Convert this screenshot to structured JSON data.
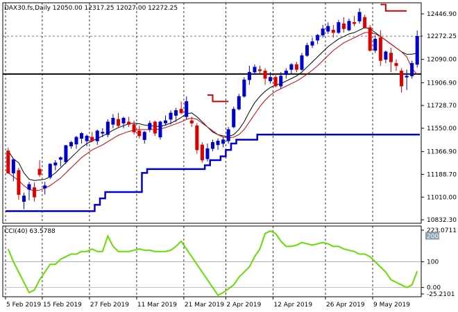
{
  "chart_data": [
    {
      "type": "candlestick",
      "title": "DAX30.fs,Daily  12050.00 12317.25 12027.00 12272.25",
      "symbol": "DAX30.fs,Daily",
      "ohlc_header": "12050.00 12317.25 12027.00 12272.25",
      "last_price": "12272.25",
      "ylim": [
        10832.3,
        12500.0
      ],
      "y_ticks": [
        "12446.90",
        "12272.25",
        "12090.00",
        "11906.90",
        "11728.70",
        "11550.00",
        "11366.90",
        "11188.70",
        "11010.00",
        "10832.30"
      ],
      "x_ticks": [
        "5 Feb 2019",
        "15 Feb 2019",
        "27 Feb 2019",
        "11 Mar 2019",
        "21 Mar 2019",
        "2 Apr 2019",
        "12 Apr 2019",
        "26 Apr 2019",
        "9 May 2019"
      ],
      "horizontal_line": 11975,
      "candles": [
        [
          11373,
          11397,
          11197,
          11198
        ],
        [
          11198,
          11312,
          11135,
          11305
        ],
        [
          11220,
          11240,
          10990,
          11030
        ],
        [
          10975,
          11045,
          10915,
          11020
        ],
        [
          11070,
          11130,
          10985,
          11110
        ],
        [
          11085,
          11125,
          10975,
          11010
        ],
        [
          11230,
          11300,
          11170,
          11185
        ],
        [
          11080,
          11130,
          11030,
          11100
        ],
        [
          11165,
          11275,
          11150,
          11270
        ],
        [
          11260,
          11300,
          11220,
          11280
        ],
        [
          11305,
          11330,
          11250,
          11320
        ],
        [
          11285,
          11420,
          11270,
          11415
        ],
        [
          11410,
          11450,
          11390,
          11440
        ],
        [
          11425,
          11490,
          11390,
          11480
        ],
        [
          11470,
          11520,
          11430,
          11510
        ],
        [
          11450,
          11500,
          11410,
          11490
        ],
        [
          11480,
          11520,
          11440,
          11450
        ],
        [
          11450,
          11540,
          11420,
          11530
        ],
        [
          11510,
          11550,
          11480,
          11520
        ],
        [
          11500,
          11620,
          11480,
          11600
        ],
        [
          11580,
          11660,
          11550,
          11630
        ],
        [
          11620,
          11670,
          11560,
          11570
        ],
        [
          11590,
          11640,
          11550,
          11630
        ],
        [
          11600,
          11640,
          11560,
          11580
        ],
        [
          11580,
          11610,
          11500,
          11520
        ],
        [
          11530,
          11570,
          11470,
          11490
        ],
        [
          11460,
          11530,
          11430,
          11520
        ],
        [
          11540,
          11610,
          11520,
          11590
        ],
        [
          11600,
          11610,
          11490,
          11510
        ],
        [
          11480,
          11610,
          11460,
          11600
        ],
        [
          11590,
          11650,
          11570,
          11610
        ],
        [
          11620,
          11690,
          11580,
          11670
        ],
        [
          11650,
          11710,
          11600,
          11690
        ],
        [
          11700,
          11760,
          11660,
          11670
        ],
        [
          11640,
          11800,
          11620,
          11760
        ],
        [
          11610,
          11640,
          11560,
          11590
        ],
        [
          11570,
          11590,
          11350,
          11380
        ],
        [
          11420,
          11440,
          11280,
          11300
        ],
        [
          11310,
          11430,
          11290,
          11390
        ],
        [
          11390,
          11460,
          11370,
          11440
        ],
        [
          11420,
          11470,
          11380,
          11450
        ],
        [
          11430,
          11480,
          11400,
          11460
        ],
        [
          11450,
          11560,
          11430,
          11540
        ],
        [
          11560,
          11720,
          11550,
          11700
        ],
        [
          11700,
          11820,
          11690,
          11800
        ],
        [
          11800,
          11950,
          11790,
          11930
        ],
        [
          11930,
          12040,
          11890,
          11990
        ],
        [
          11990,
          12050,
          11970,
          12030
        ],
        [
          12010,
          12040,
          11980,
          12000
        ],
        [
          12000,
          12020,
          11890,
          11940
        ],
        [
          11920,
          11990,
          11900,
          11950
        ],
        [
          11950,
          11980,
          11870,
          11880
        ],
        [
          11880,
          11990,
          11860,
          11960
        ],
        [
          11970,
          12020,
          11940,
          12000
        ],
        [
          12010,
          12060,
          11980,
          12050
        ],
        [
          12050,
          12070,
          11990,
          12010
        ],
        [
          12010,
          12140,
          12000,
          12120
        ],
        [
          12120,
          12220,
          12110,
          12200
        ],
        [
          12200,
          12260,
          12180,
          12230
        ],
        [
          12240,
          12290,
          12210,
          12280
        ],
        [
          12280,
          12360,
          12260,
          12330
        ],
        [
          12310,
          12380,
          12290,
          12350
        ],
        [
          12320,
          12360,
          12260,
          12300
        ],
        [
          12300,
          12400,
          12290,
          12380
        ],
        [
          12370,
          12420,
          12300,
          12330
        ],
        [
          12320,
          12410,
          12310,
          12390
        ],
        [
          12380,
          12430,
          12350,
          12370
        ],
        [
          12390,
          12490,
          12370,
          12460
        ],
        [
          12420,
          12440,
          12330,
          12340
        ],
        [
          12340,
          12360,
          12150,
          12160
        ],
        [
          12160,
          12280,
          12140,
          12250
        ],
        [
          12260,
          12320,
          12040,
          12080
        ],
        [
          12090,
          12160,
          12060,
          12150
        ],
        [
          12140,
          12180,
          11990,
          12070
        ],
        [
          12060,
          12090,
          12000,
          12040
        ],
        [
          12000,
          12020,
          11830,
          11880
        ],
        [
          11950,
          12010,
          11850,
          11960
        ],
        [
          11960,
          12080,
          11940,
          12060
        ],
        [
          12050,
          12317,
          12027,
          12272
        ]
      ],
      "line_series": [
        {
          "name": "",
          "color": "#000000",
          "values": [
            11373,
            11310,
            11280,
            11200,
            11150,
            11140,
            11145,
            11150,
            11170,
            11200,
            11240,
            11280,
            11320,
            11360,
            11400,
            11430,
            11450,
            11470,
            11490,
            11510,
            11535,
            11555,
            11570,
            11585,
            11590,
            11585,
            11575,
            11570,
            11565,
            11565,
            11575,
            11590,
            11610,
            11635,
            11665,
            11670,
            11640,
            11600,
            11560,
            11520,
            11500,
            11490,
            11485,
            11500,
            11540,
            11600,
            11680,
            11750,
            11800,
            11840,
            11870,
            11890,
            11900,
            11920,
            11940,
            11960,
            11990,
            12030,
            12070,
            12110,
            12150,
            12190,
            12220,
            12250,
            12270,
            12290,
            12300,
            12320,
            12340,
            12330,
            12300,
            12270,
            12240,
            12210,
            12180,
            12150,
            12130,
            12130,
            12140
          ]
        },
        {
          "name": "",
          "color": "#cc0000",
          "values": [
            11200,
            11170,
            11140,
            11100,
            11070,
            11060,
            11065,
            11080,
            11100,
            11130,
            11160,
            11200,
            11240,
            11280,
            11320,
            11350,
            11380,
            11400,
            11420,
            11445,
            11470,
            11495,
            11510,
            11525,
            11535,
            11540,
            11540,
            11540,
            11540,
            11545,
            11555,
            11570,
            11585,
            11600,
            11620,
            11630,
            11620,
            11590,
            11560,
            11530,
            11500,
            11480,
            11475,
            11480,
            11500,
            11540,
            11600,
            11660,
            11720,
            11770,
            11810,
            11840,
            11860,
            11880,
            11900,
            11920,
            11945,
            11975,
            12005,
            12040,
            12080,
            12120,
            12160,
            12190,
            12220,
            12240,
            12260,
            12280,
            12300,
            12300,
            12290,
            12270,
            12240,
            12210,
            12180,
            12150,
            12110,
            12020,
            11970
          ]
        }
      ],
      "step_series": [
        {
          "name": "",
          "color": "#0000cc",
          "values": [
            10900,
            10900,
            10900,
            10900,
            10900,
            10900,
            10900,
            10900,
            10900,
            10900,
            10900,
            10900,
            10900,
            10900,
            10900,
            10900,
            10900,
            10950,
            11000,
            11050,
            11050,
            11050,
            11050,
            11050,
            11050,
            11050,
            11200,
            11230,
            11230,
            11230,
            11230,
            11230,
            11230,
            11230,
            11230,
            11230,
            11230,
            11230,
            11260,
            11300,
            11300,
            11330,
            11380,
            11430,
            11460,
            11460,
            11460,
            11460,
            11500,
            11500,
            11500,
            11500,
            11500,
            11500,
            11500,
            11500,
            11500,
            11500,
            11500,
            11500,
            11500,
            11500,
            11500,
            11500,
            11500,
            11500,
            11500,
            11500,
            11500,
            11500,
            11500,
            11500,
            11500,
            11500,
            11500,
            11500,
            11500,
            11500,
            11500
          ]
        }
      ],
      "red_step_segments": [
        {
          "x": [
            38,
            42
          ],
          "y": [
            11810,
            11760
          ]
        },
        {
          "x": [
            71,
            76
          ],
          "y": [
            12520,
            12470
          ]
        }
      ]
    },
    {
      "type": "line",
      "title": "CCI(40) 63.5788",
      "indicator": "CCI(40)",
      "indicator_value": "63.5788",
      "ylim": [
        -25.2101,
        223.0711
      ],
      "y_ticks": [
        "223.0711",
        "100",
        "0.00",
        "-25.2101"
      ],
      "y_tick_boxes": [
        "200"
      ],
      "levels": [
        100,
        0
      ],
      "series": [
        {
          "name": "",
          "color": "#66dd00",
          "values": [
            150,
            100,
            60,
            20,
            -20,
            -10,
            30,
            60,
            90,
            90,
            110,
            120,
            130,
            130,
            140,
            140,
            150,
            140,
            140,
            200,
            160,
            140,
            140,
            140,
            145,
            150,
            145,
            145,
            140,
            140,
            140,
            145,
            160,
            180,
            150,
            120,
            90,
            60,
            30,
            0,
            -30,
            -20,
            -5,
            10,
            40,
            60,
            80,
            120,
            150,
            210,
            220,
            210,
            180,
            160,
            160,
            165,
            175,
            170,
            165,
            170,
            175,
            170,
            160,
            160,
            150,
            145,
            140,
            130,
            130,
            120,
            100,
            80,
            60,
            30,
            20,
            10,
            0,
            10,
            63.5788
          ]
        }
      ]
    }
  ]
}
